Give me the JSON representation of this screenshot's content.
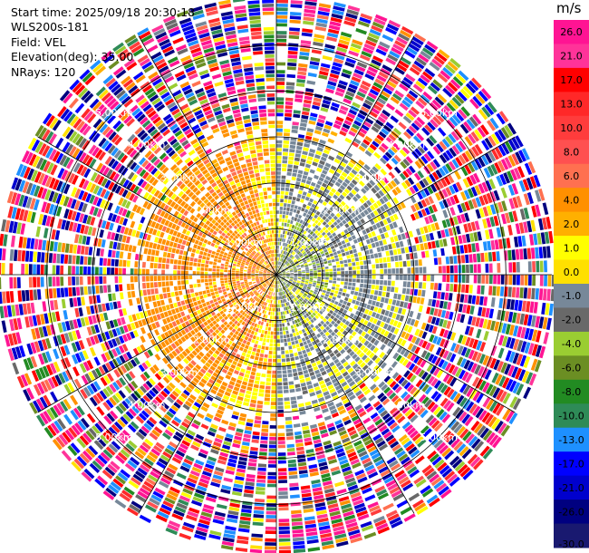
{
  "chart_data": {
    "type": "heatmap",
    "subtype": "radar-ppi",
    "info": {
      "start_time": "Start time: 2025/09/18 20:30:18",
      "site": "WLS200s-181",
      "field": "Field: VEL",
      "elevation": "Elevation(deg): 35.00",
      "nrays": "NRays: 120"
    },
    "range_rings_km": [
      1,
      2,
      3,
      4,
      5
    ],
    "ring_labels": [
      "1.00km",
      "2.00km",
      "3.00km",
      "4.00km",
      "5.00km"
    ],
    "max_range_km": 6.0,
    "spokes_deg": [
      0,
      30,
      60,
      90,
      120,
      150,
      180,
      210,
      240,
      270,
      300,
      330
    ],
    "nrays": 120,
    "colorbar": {
      "unit": "m/s",
      "ticks": [
        "26.0",
        "21.0",
        "17.0",
        "13.0",
        "10.0",
        "8.0",
        "6.0",
        "4.0",
        "2.0",
        "1.0",
        "0.0",
        "-1.0",
        "-2.0",
        "-4.0",
        "-6.0",
        "-8.0",
        "-10.0",
        "-13.0",
        "-17.0",
        "-21.0",
        "-26.0",
        "-30.0"
      ],
      "colors": [
        "#ff1493",
        "#ff3399",
        "#ff0000",
        "#ff2828",
        "#ff3c3c",
        "#ff5050",
        "#ff7050",
        "#ff9000",
        "#ffb000",
        "#ffff00",
        "#ffe000",
        "#778899",
        "#696969",
        "#9acd32",
        "#6b8e23",
        "#228b22",
        "#2e8b57",
        "#1e90ff",
        "#0000ff",
        "#0000cd",
        "#000080",
        "#191970"
      ]
    },
    "regions": {
      "inner_west_velocity": "positive (yellow/orange)",
      "inner_east_velocity": "negative (gray/olive)",
      "outer_ring": "noisy mixed values"
    }
  }
}
